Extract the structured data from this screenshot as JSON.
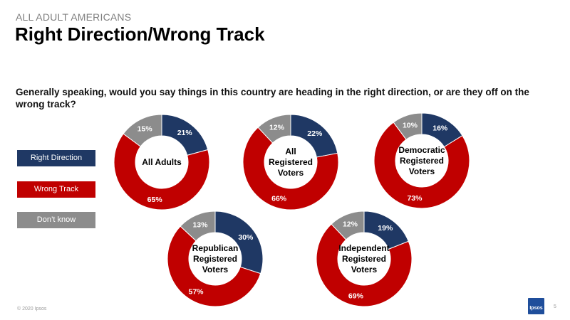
{
  "header": {
    "eyebrow": "ALL ADULT AMERICANS",
    "title": "Right Direction/Wrong Track"
  },
  "question": "Generally speaking, would you say things in this country are heading in the right direction, or are they off on the wrong track?",
  "legend": [
    {
      "label": "Right Direction",
      "color": "#1f3864"
    },
    {
      "label": "Wrong Track",
      "color": "#c00000"
    },
    {
      "label": "Don’t know",
      "color": "#8c8c8c"
    }
  ],
  "chart_data": {
    "type": "pie",
    "variant": "donut",
    "categories": [
      "Right Direction",
      "Wrong Track",
      "Don’t know"
    ],
    "colors": [
      "#1f3864",
      "#c00000",
      "#8c8c8c"
    ],
    "series": [
      {
        "name": "All Adults",
        "values": [
          21,
          65,
          15
        ]
      },
      {
        "name": "All Registered Voters",
        "values": [
          22,
          66,
          12
        ]
      },
      {
        "name": "Democratic Registered Voters",
        "values": [
          16,
          73,
          10
        ]
      },
      {
        "name": "Republican Registered Voters",
        "values": [
          30,
          57,
          13
        ]
      },
      {
        "name": "Independent Registered Voters",
        "values": [
          19,
          69,
          12
        ]
      }
    ]
  },
  "footer": {
    "copyright": "© 2020 Ipsos",
    "logo": "Ipsos",
    "page": "5"
  }
}
